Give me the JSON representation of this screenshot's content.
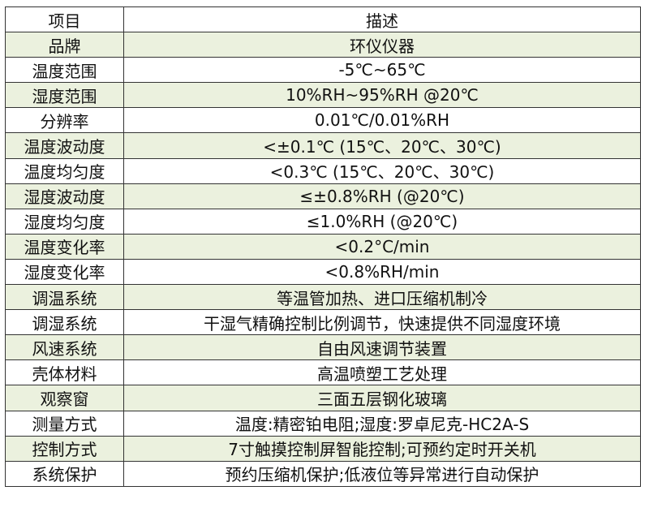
{
  "header": {
    "col1": "项目",
    "col2": "描述"
  },
  "rows": [
    {
      "k": "品牌",
      "v": "环仪仪器"
    },
    {
      "k": "温度范围",
      "v": "-5℃~65℃"
    },
    {
      "k": "湿度范围",
      "v": "10%RH~95%RH @20℃"
    },
    {
      "k": "分辨率",
      "v": "0.01℃/0.01%RH"
    },
    {
      "k": "温度波动度",
      "v": "<±0.1℃ (15℃、20℃、30℃)"
    },
    {
      "k": "温度均匀度",
      "v": "<0.3℃ (15℃、20℃、30℃)"
    },
    {
      "k": "湿度波动度",
      "v": "≤±0.8%RH (@20℃)"
    },
    {
      "k": "湿度均匀度",
      "v": "≤1.0%RH (@20℃)"
    },
    {
      "k": "温度变化率",
      "v": "<0.2°C/min"
    },
    {
      "k": "湿度变化率",
      "v": "<0.8%RH/min"
    },
    {
      "k": "调温系统",
      "v": "等温管加热、进口压缩机制冷"
    },
    {
      "k": "调湿系统",
      "v": "干湿气精确控制比例调节，快速提供不同湿度环境"
    },
    {
      "k": "风速系统",
      "v": "自由风速调节装置"
    },
    {
      "k": "壳体材料",
      "v": "高温喷塑工艺处理"
    },
    {
      "k": "观察窗",
      "v": "三面五层钢化玻璃"
    },
    {
      "k": "测量方式",
      "v": "温度:精密铂电阻;湿度:罗卓尼克-HC2A-S"
    },
    {
      "k": "控制方式",
      "v": "7寸触摸控制屏智能控制;可预约定时开关机"
    },
    {
      "k": "系统保护",
      "v": "预约压缩机保护;低液位等异常进行自动保护"
    }
  ],
  "colors": {
    "stripe": "#ebf1de",
    "border": "#333333"
  }
}
